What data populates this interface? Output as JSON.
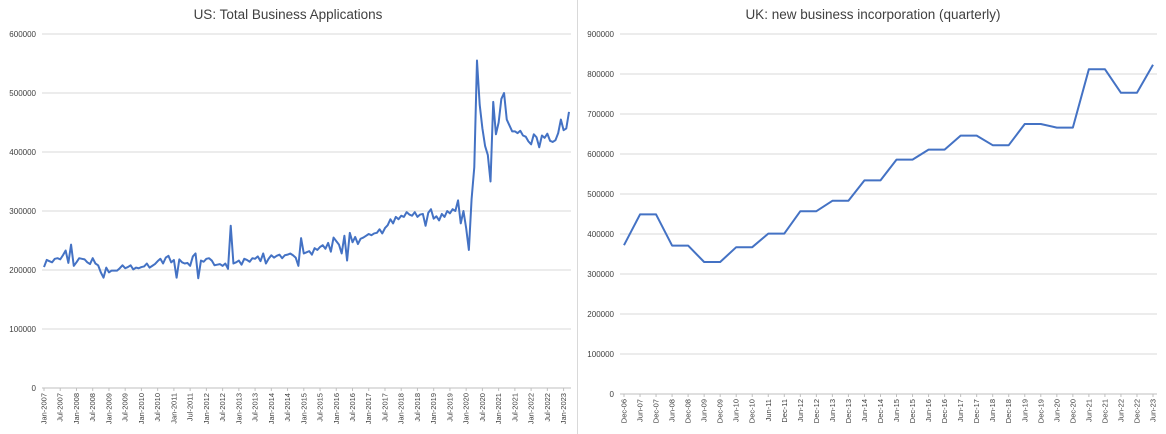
{
  "charts": {
    "us": {
      "title": "US: Total Business Applications"
    },
    "uk": {
      "title": "UK: new business incorporation (quarterly)"
    }
  },
  "colors": {
    "line": "#4472c4",
    "grid": "#d9d9d9",
    "axis": "#bfbfbf",
    "text": "#404040"
  },
  "chart_data": [
    {
      "type": "line",
      "title": "US: Total Business Applications",
      "xlabel": "",
      "ylabel": "",
      "ylim": [
        0,
        600000
      ],
      "yticks": [
        0,
        100000,
        200000,
        300000,
        400000,
        500000,
        600000
      ],
      "grid": true,
      "x_tick_labels": [
        "Jan-2007",
        "Jul-2007",
        "Jan-2008",
        "Jul-2008",
        "Jan-2009",
        "Jul-2009",
        "Jan-2010",
        "Jul-2010",
        "Jan-2011",
        "Jul-2011",
        "Jan-2012",
        "Jul-2012",
        "Jan-2013",
        "Jul-2013",
        "Jan-2014",
        "Jul-2014",
        "Jan-2015",
        "Jul-2015",
        "Jan-2016",
        "Jul-2016",
        "Jan-2017",
        "Jul-2017",
        "Jan-2018",
        "Jul-2018",
        "Jan-2019",
        "Jul-2019",
        "Jan-2020",
        "Jul-2020",
        "Jan-2021",
        "Jul-2021",
        "Jan-2022",
        "Jul-2022",
        "Jan-2023"
      ],
      "series": [
        {
          "x_start": "Jan-2007",
          "frequency": "monthly",
          "values": [
            205000,
            217000,
            215000,
            213000,
            219000,
            220000,
            218000,
            225000,
            233000,
            212000,
            243000,
            207000,
            213000,
            220000,
            219000,
            218000,
            213000,
            210000,
            220000,
            211000,
            208000,
            196000,
            187000,
            204000,
            196000,
            199000,
            199000,
            199000,
            203000,
            208000,
            203000,
            205000,
            208000,
            201000,
            204000,
            203000,
            205000,
            206000,
            211000,
            204000,
            207000,
            210000,
            215000,
            219000,
            211000,
            221000,
            224000,
            213000,
            217000,
            187000,
            218000,
            213000,
            211000,
            212000,
            207000,
            223000,
            228000,
            186000,
            216000,
            214000,
            219000,
            220000,
            216000,
            208000,
            209000,
            210000,
            207000,
            211000,
            202000,
            275000,
            211000,
            213000,
            216000,
            209000,
            219000,
            217000,
            214000,
            220000,
            219000,
            223000,
            215000,
            228000,
            211000,
            219000,
            225000,
            221000,
            224000,
            226000,
            220000,
            225000,
            226000,
            228000,
            225000,
            221000,
            207000,
            254000,
            228000,
            230000,
            232000,
            226000,
            237000,
            234000,
            239000,
            242000,
            236000,
            246000,
            231000,
            255000,
            249000,
            243000,
            228000,
            258000,
            216000,
            263000,
            247000,
            256000,
            244000,
            253000,
            255000,
            258000,
            261000,
            259000,
            262000,
            263000,
            269000,
            262000,
            271000,
            276000,
            286000,
            279000,
            290000,
            286000,
            292000,
            290000,
            298000,
            294000,
            292000,
            298000,
            290000,
            294000,
            295000,
            275000,
            297000,
            303000,
            287000,
            291000,
            284000,
            295000,
            290000,
            300000,
            296000,
            303000,
            300000,
            318000,
            279000,
            300000,
            271000,
            234000,
            320000,
            374000,
            555000,
            480000,
            440000,
            410000,
            395000,
            350000,
            485000,
            430000,
            450000,
            490000,
            500000,
            455000,
            445000,
            435000,
            435000,
            432000,
            436000,
            428000,
            426000,
            418000,
            413000,
            430000,
            425000,
            408000,
            428000,
            424000,
            431000,
            419000,
            417000,
            420000,
            432000,
            455000,
            437000,
            440000,
            468000
          ]
        }
      ]
    },
    {
      "type": "line",
      "title": "UK: new business incorporation (quarterly)",
      "xlabel": "",
      "ylabel": "",
      "ylim": [
        0,
        900000
      ],
      "yticks": [
        0,
        100000,
        200000,
        300000,
        400000,
        500000,
        600000,
        700000,
        800000,
        900000
      ],
      "grid": true,
      "categories": [
        "Dec-06",
        "Jun-07",
        "Dec-07",
        "Jun-08",
        "Dec-08",
        "Jun-09",
        "Dec-09",
        "Jun-10",
        "Dec-10",
        "Jun-11",
        "Dec-11",
        "Jun-12",
        "Dec-12",
        "Jun-13",
        "Dec-13",
        "Jun-14",
        "Dec-14",
        "Jun-15",
        "Dec-15",
        "Jun-16",
        "Dec-16",
        "Jun-17",
        "Dec-17",
        "Jun-18",
        "Dec-18",
        "Jun-19",
        "Dec-19",
        "Jun-20",
        "Dec-20",
        "Jun-21",
        "Dec-21",
        "Jun-22",
        "Dec-22",
        "Jun-23"
      ],
      "series": [
        {
          "values": [
            372000,
            449000,
            449000,
            371000,
            371000,
            330000,
            330000,
            367000,
            367000,
            401000,
            401000,
            457000,
            457000,
            483000,
            483000,
            534000,
            534000,
            586000,
            586000,
            611000,
            611000,
            646000,
            646000,
            622000,
            622000,
            675000,
            675000,
            666000,
            666000,
            812000,
            812000,
            753000,
            753000,
            823000
          ]
        }
      ]
    }
  ]
}
